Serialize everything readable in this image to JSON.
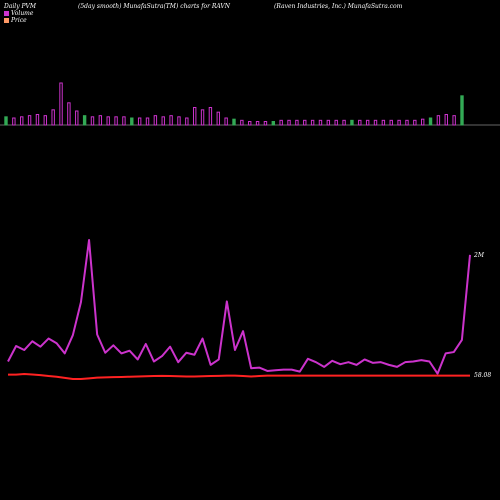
{
  "header": {
    "left": "Daily PVM",
    "middle": "(5day smooth) MunafaSutra(TM) charts for RAVN",
    "right": "(Raven  Industries,  Inc.) MunafaSutra.com"
  },
  "legend": [
    {
      "label": "Volume",
      "color": "#cc33cc"
    },
    {
      "label": "Price",
      "color": "#ff9966"
    }
  ],
  "colors": {
    "volume_bar": "#cc33cc",
    "volume_bar_down": "#33aa55",
    "pvm_line": "#cc33cc",
    "price_line": "#ff2222",
    "baseline": "#888888"
  },
  "chart_data": {
    "type": "bar+line",
    "volume": {
      "name": "Volume",
      "values": [
        7,
        6,
        7,
        8,
        9,
        8,
        13,
        36,
        19,
        12,
        8,
        7,
        8,
        7,
        7,
        7,
        6,
        6,
        6,
        8,
        7,
        8,
        7,
        6,
        15,
        13,
        15,
        11,
        6,
        5,
        4,
        3,
        3,
        3,
        3,
        4,
        4,
        4,
        4,
        4,
        4,
        4,
        4,
        4,
        4,
        4,
        4,
        4,
        4,
        4,
        4,
        4,
        4,
        5,
        6,
        8,
        9,
        8,
        25
      ],
      "down_indices": [
        0,
        10,
        16,
        29,
        34,
        44,
        54,
        58
      ]
    },
    "pvm_line": {
      "name": "Volume",
      "values": [
        200,
        430,
        370,
        500,
        420,
        540,
        470,
        320,
        590,
        1080,
        2000,
        600,
        330,
        440,
        320,
        360,
        230,
        460,
        200,
        280,
        420,
        190,
        330,
        300,
        540,
        150,
        230,
        1090,
        370,
        650,
        100,
        110,
        60,
        70,
        80,
        80,
        50,
        240,
        190,
        120,
        210,
        160,
        190,
        150,
        230,
        180,
        190,
        150,
        120,
        190,
        200,
        220,
        200,
        20,
        320,
        340,
        520,
        1780
      ],
      "ylabel_top": "2M"
    },
    "price_line": {
      "name": "Price",
      "values": [
        58.8,
        58.8,
        59.4,
        59.0,
        58.4,
        57.6,
        57.0,
        56.0,
        55.0,
        55.0,
        55.6,
        56.2,
        56.4,
        56.6,
        56.8,
        57.0,
        57.2,
        57.4,
        57.6,
        57.8,
        57.6,
        57.4,
        57.2,
        57.2,
        57.4,
        57.6,
        57.8,
        58.0,
        58.0,
        57.6,
        57.2,
        57.6,
        58.0,
        58.0,
        58.0,
        58.0,
        58.0,
        58.0,
        58.0,
        58.0,
        58.0,
        58.0,
        58.0,
        58.0,
        58.0,
        58.0,
        58.0,
        58.0,
        58.0,
        58.0,
        58.0,
        58.0,
        58.0,
        58.0,
        58.0,
        58.0,
        58.0,
        58.0
      ],
      "last_label": "58.08"
    }
  }
}
